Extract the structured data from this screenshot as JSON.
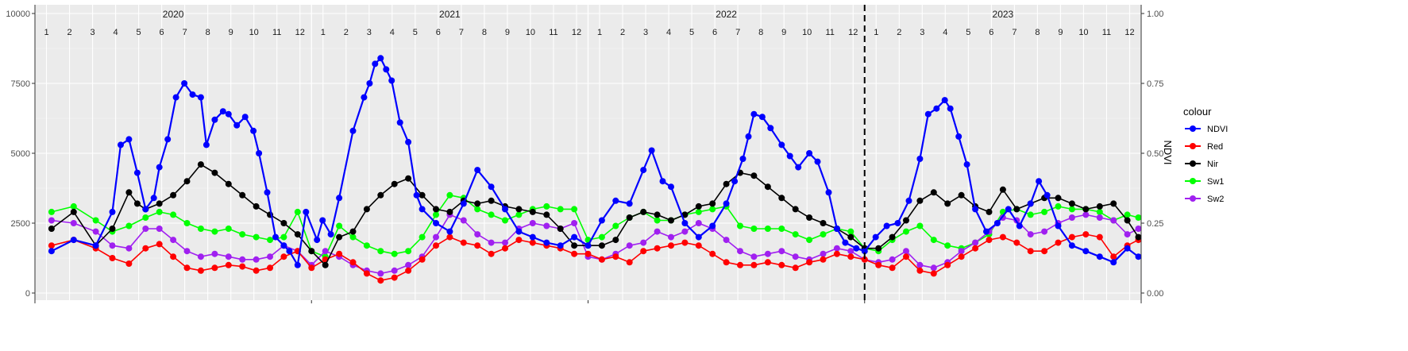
{
  "chart_data": {
    "type": "line",
    "left_axis": {
      "ticks": [
        0,
        2500,
        5000,
        7500,
        10000
      ],
      "tick_labels": [
        "0",
        "2500",
        "5000",
        "7500",
        "10000"
      ],
      "range": [
        0,
        10000
      ],
      "label": ""
    },
    "right_axis": {
      "ticks": [
        0,
        0.25,
        0.5,
        0.75,
        1
      ],
      "tick_labels": [
        "0.00",
        "0.25",
        "0.50",
        "0.75",
        "1.00"
      ],
      "range": [
        0,
        1
      ],
      "label": "NDVI"
    },
    "years": [
      "2020",
      "2021",
      "2022",
      "2023"
    ],
    "month_labels": [
      "1",
      "2",
      "3",
      "4",
      "5",
      "6",
      "7",
      "8",
      "9",
      "10",
      "11",
      "12"
    ],
    "grid": true,
    "vline_date": "2023.0",
    "legend": {
      "title": "colour",
      "placement": "right"
    },
    "colors": {
      "NDVI": "#0000ff",
      "Red": "#ff0000",
      "Nir": "#000000",
      "Sw1": "#00ff00",
      "Sw2": "#a020f0"
    },
    "draw_order": [
      "Sw1",
      "Sw2",
      "Red",
      "Nir",
      "NDVI"
    ],
    "legend_order": [
      "NDVI",
      "Red",
      "Nir",
      "Sw1",
      "Sw2"
    ],
    "series": [
      {
        "name": "NDVI",
        "axis": "right",
        "x": [
          2020.06,
          2020.14,
          2020.22,
          2020.28,
          2020.31,
          2020.34,
          2020.37,
          2020.4,
          2020.43,
          2020.45,
          2020.48,
          2020.51,
          2020.54,
          2020.57,
          2020.6,
          2020.62,
          2020.65,
          2020.68,
          2020.7,
          2020.73,
          2020.76,
          2020.79,
          2020.81,
          2020.84,
          2020.87,
          2020.9,
          2020.92,
          2020.95,
          2020.98,
          2021.02,
          2021.04,
          2021.07,
          2021.1,
          2021.15,
          2021.19,
          2021.21,
          2021.23,
          2021.25,
          2021.27,
          2021.29,
          2021.32,
          2021.35,
          2021.38,
          2021.4,
          2021.45,
          2021.5,
          2021.55,
          2021.6,
          2021.65,
          2021.7,
          2021.75,
          2021.8,
          2021.85,
          2021.9,
          2021.95,
          2022.0,
          2022.05,
          2022.1,
          2022.15,
          2022.2,
          2022.23,
          2022.27,
          2022.3,
          2022.35,
          2022.4,
          2022.45,
          2022.5,
          2022.53,
          2022.56,
          2022.58,
          2022.6,
          2022.63,
          2022.66,
          2022.7,
          2022.73,
          2022.76,
          2022.8,
          2022.83,
          2022.87,
          2022.9,
          2022.93,
          2022.97,
          2023.0,
          2023.04,
          2023.08,
          2023.12,
          2023.16,
          2023.2,
          2023.23,
          2023.26,
          2023.29,
          2023.31,
          2023.34,
          2023.37,
          2023.4,
          2023.44,
          2023.48,
          2023.52,
          2023.56,
          2023.6,
          2023.63,
          2023.66,
          2023.7,
          2023.75,
          2023.8,
          2023.85,
          2023.9,
          2023.95,
          2023.99
        ],
        "y": [
          0.15,
          0.19,
          0.17,
          0.29,
          0.53,
          0.55,
          0.43,
          0.3,
          0.34,
          0.45,
          0.55,
          0.7,
          0.75,
          0.71,
          0.7,
          0.53,
          0.62,
          0.65,
          0.64,
          0.6,
          0.63,
          0.58,
          0.5,
          0.36,
          0.2,
          0.17,
          0.15,
          0.1,
          0.29,
          0.19,
          0.26,
          0.21,
          0.34,
          0.58,
          0.7,
          0.75,
          0.82,
          0.84,
          0.8,
          0.76,
          0.61,
          0.54,
          0.35,
          0.3,
          0.25,
          0.22,
          0.32,
          0.44,
          0.38,
          0.3,
          0.22,
          0.2,
          0.18,
          0.17,
          0.2,
          0.17,
          0.26,
          0.33,
          0.32,
          0.44,
          0.51,
          0.4,
          0.38,
          0.25,
          0.2,
          0.24,
          0.32,
          0.4,
          0.48,
          0.56,
          0.64,
          0.63,
          0.59,
          0.53,
          0.49,
          0.45,
          0.5,
          0.47,
          0.36,
          0.23,
          0.18,
          0.16,
          0.15,
          0.2,
          0.24,
          0.25,
          0.33,
          0.48,
          0.64,
          0.66,
          0.69,
          0.66,
          0.56,
          0.46,
          0.3,
          0.22,
          0.25,
          0.3,
          0.24,
          0.32,
          0.4,
          0.35,
          0.24,
          0.17,
          0.15,
          0.13,
          0.11,
          0.16,
          0.13
        ]
      },
      {
        "name": "Red",
        "axis": "left",
        "x": [
          2020.06,
          2020.14,
          2020.22,
          2020.28,
          2020.34,
          2020.4,
          2020.45,
          2020.5,
          2020.55,
          2020.6,
          2020.65,
          2020.7,
          2020.75,
          2020.8,
          2020.85,
          2020.9,
          2020.95,
          2021.0,
          2021.05,
          2021.1,
          2021.15,
          2021.2,
          2021.25,
          2021.3,
          2021.35,
          2021.4,
          2021.45,
          2021.5,
          2021.55,
          2021.6,
          2021.65,
          2021.7,
          2021.75,
          2021.8,
          2021.85,
          2021.9,
          2021.95,
          2022.0,
          2022.05,
          2022.1,
          2022.15,
          2022.2,
          2022.25,
          2022.3,
          2022.35,
          2022.4,
          2022.45,
          2022.5,
          2022.55,
          2022.6,
          2022.65,
          2022.7,
          2022.75,
          2022.8,
          2022.85,
          2022.9,
          2022.95,
          2023.0,
          2023.05,
          2023.1,
          2023.15,
          2023.2,
          2023.25,
          2023.3,
          2023.35,
          2023.4,
          2023.45,
          2023.5,
          2023.55,
          2023.6,
          2023.65,
          2023.7,
          2023.75,
          2023.8,
          2023.85,
          2023.9,
          2023.95,
          2023.99
        ],
        "y": [
          1700,
          1900,
          1600,
          1250,
          1050,
          1600,
          1750,
          1300,
          900,
          800,
          900,
          1000,
          950,
          800,
          900,
          1300,
          1500,
          900,
          1200,
          1400,
          1100,
          700,
          450,
          550,
          800,
          1200,
          1700,
          2000,
          1800,
          1700,
          1400,
          1600,
          1900,
          1800,
          1700,
          1600,
          1400,
          1400,
          1200,
          1300,
          1100,
          1500,
          1600,
          1700,
          1800,
          1700,
          1400,
          1100,
          1000,
          1000,
          1100,
          1000,
          900,
          1100,
          1200,
          1400,
          1300,
          1200,
          1000,
          900,
          1300,
          800,
          700,
          1000,
          1300,
          1600,
          1900,
          2000,
          1800,
          1500,
          1500,
          1800,
          2000,
          2100,
          2000,
          1300,
          1700,
          1900
        ]
      },
      {
        "name": "Nir",
        "axis": "left",
        "x": [
          2020.06,
          2020.14,
          2020.22,
          2020.28,
          2020.34,
          2020.37,
          2020.4,
          2020.45,
          2020.5,
          2020.55,
          2020.6,
          2020.65,
          2020.7,
          2020.75,
          2020.8,
          2020.85,
          2020.9,
          2020.95,
          2021.0,
          2021.05,
          2021.1,
          2021.15,
          2021.2,
          2021.25,
          2021.3,
          2021.35,
          2021.4,
          2021.45,
          2021.5,
          2021.55,
          2021.6,
          2021.65,
          2021.7,
          2021.75,
          2021.8,
          2021.85,
          2021.9,
          2021.95,
          2022.0,
          2022.05,
          2022.1,
          2022.15,
          2022.2,
          2022.25,
          2022.3,
          2022.35,
          2022.4,
          2022.45,
          2022.5,
          2022.55,
          2022.6,
          2022.65,
          2022.7,
          2022.75,
          2022.8,
          2022.85,
          2022.9,
          2022.95,
          2023.0,
          2023.05,
          2023.1,
          2023.15,
          2023.2,
          2023.25,
          2023.3,
          2023.35,
          2023.4,
          2023.45,
          2023.5,
          2023.55,
          2023.6,
          2023.65,
          2023.7,
          2023.75,
          2023.8,
          2023.85,
          2023.9,
          2023.95,
          2023.99
        ],
        "y": [
          2300,
          2900,
          1700,
          2300,
          3600,
          3200,
          3000,
          3200,
          3500,
          4000,
          4600,
          4300,
          3900,
          3500,
          3100,
          2800,
          2500,
          2100,
          1500,
          1000,
          2000,
          2200,
          3000,
          3500,
          3900,
          4100,
          3500,
          3000,
          2900,
          3300,
          3200,
          3300,
          3100,
          3000,
          2900,
          2800,
          2300,
          1700,
          1700,
          1700,
          1900,
          2700,
          2900,
          2800,
          2600,
          2800,
          3100,
          3200,
          3900,
          4300,
          4200,
          3800,
          3400,
          3000,
          2700,
          2500,
          2300,
          2000,
          1600,
          1600,
          2000,
          2600,
          3300,
          3600,
          3200,
          3500,
          3100,
          2900,
          3700,
          3000,
          3200,
          3400,
          3400,
          3200,
          3000,
          3100,
          3200,
          2600,
          2000
        ]
      },
      {
        "name": "Sw1",
        "axis": "left",
        "x": [
          2020.06,
          2020.14,
          2020.22,
          2020.28,
          2020.34,
          2020.4,
          2020.45,
          2020.5,
          2020.55,
          2020.6,
          2020.65,
          2020.7,
          2020.75,
          2020.8,
          2020.85,
          2020.9,
          2020.95,
          2021.0,
          2021.05,
          2021.1,
          2021.15,
          2021.2,
          2021.25,
          2021.3,
          2021.35,
          2021.4,
          2021.45,
          2021.5,
          2021.55,
          2021.6,
          2021.65,
          2021.7,
          2021.75,
          2021.8,
          2021.85,
          2021.9,
          2021.95,
          2022.0,
          2022.05,
          2022.1,
          2022.15,
          2022.2,
          2022.25,
          2022.3,
          2022.35,
          2022.4,
          2022.45,
          2022.5,
          2022.55,
          2022.6,
          2022.65,
          2022.7,
          2022.75,
          2022.8,
          2022.85,
          2022.9,
          2022.95,
          2023.0,
          2023.05,
          2023.1,
          2023.15,
          2023.2,
          2023.25,
          2023.3,
          2023.35,
          2023.4,
          2023.45,
          2023.5,
          2023.55,
          2023.6,
          2023.65,
          2023.7,
          2023.75,
          2023.8,
          2023.85,
          2023.9,
          2023.95,
          2023.99
        ],
        "y": [
          2900,
          3100,
          2600,
          2200,
          2400,
          2700,
          2900,
          2800,
          2500,
          2300,
          2200,
          2300,
          2100,
          2000,
          1900,
          2000,
          2900,
          1500,
          1300,
          2400,
          2000,
          1700,
          1500,
          1400,
          1500,
          2000,
          2800,
          3500,
          3400,
          3000,
          2800,
          2600,
          2800,
          3000,
          3100,
          3000,
          3000,
          1900,
          2000,
          2400,
          2700,
          2900,
          2600,
          2600,
          2800,
          2900,
          3000,
          3100,
          2400,
          2300,
          2300,
          2300,
          2100,
          1900,
          2100,
          2300,
          2200,
          1600,
          1500,
          1900,
          2200,
          2400,
          1900,
          1700,
          1600,
          1800,
          2100,
          2900,
          3000,
          2800,
          2900,
          3100,
          3000,
          3000,
          2900,
          2600,
          2800,
          2700
        ]
      },
      {
        "name": "Sw2",
        "axis": "left",
        "x": [
          2020.06,
          2020.14,
          2020.22,
          2020.28,
          2020.34,
          2020.4,
          2020.45,
          2020.5,
          2020.55,
          2020.6,
          2020.65,
          2020.7,
          2020.75,
          2020.8,
          2020.85,
          2020.9,
          2020.95,
          2021.0,
          2021.05,
          2021.1,
          2021.15,
          2021.2,
          2021.25,
          2021.3,
          2021.35,
          2021.4,
          2021.45,
          2021.5,
          2021.55,
          2021.6,
          2021.65,
          2021.7,
          2021.75,
          2021.8,
          2021.85,
          2021.9,
          2021.95,
          2022.0,
          2022.05,
          2022.1,
          2022.15,
          2022.2,
          2022.25,
          2022.3,
          2022.35,
          2022.4,
          2022.45,
          2022.5,
          2022.55,
          2022.6,
          2022.65,
          2022.7,
          2022.75,
          2022.8,
          2022.85,
          2022.9,
          2022.95,
          2023.0,
          2023.05,
          2023.1,
          2023.15,
          2023.2,
          2023.25,
          2023.3,
          2023.35,
          2023.4,
          2023.45,
          2023.5,
          2023.55,
          2023.6,
          2023.65,
          2023.7,
          2023.75,
          2023.8,
          2023.85,
          2023.9,
          2023.95,
          2023.99
        ],
        "y": [
          2600,
          2500,
          2200,
          1700,
          1600,
          2300,
          2300,
          1900,
          1500,
          1300,
          1400,
          1300,
          1200,
          1200,
          1300,
          1700,
          1500,
          1000,
          1500,
          1300,
          1000,
          800,
          700,
          800,
          1000,
          1300,
          2000,
          2800,
          2600,
          2100,
          1800,
          1800,
          2300,
          2500,
          2400,
          2300,
          2500,
          1300,
          1200,
          1400,
          1700,
          1800,
          2200,
          2000,
          2200,
          2500,
          2300,
          1900,
          1500,
          1300,
          1400,
          1500,
          1300,
          1200,
          1400,
          1600,
          1500,
          1200,
          1100,
          1200,
          1500,
          1000,
          900,
          1100,
          1500,
          1800,
          2200,
          2700,
          2600,
          2100,
          2200,
          2500,
          2700,
          2800,
          2700,
          2600,
          2100,
          2300
        ]
      }
    ]
  }
}
